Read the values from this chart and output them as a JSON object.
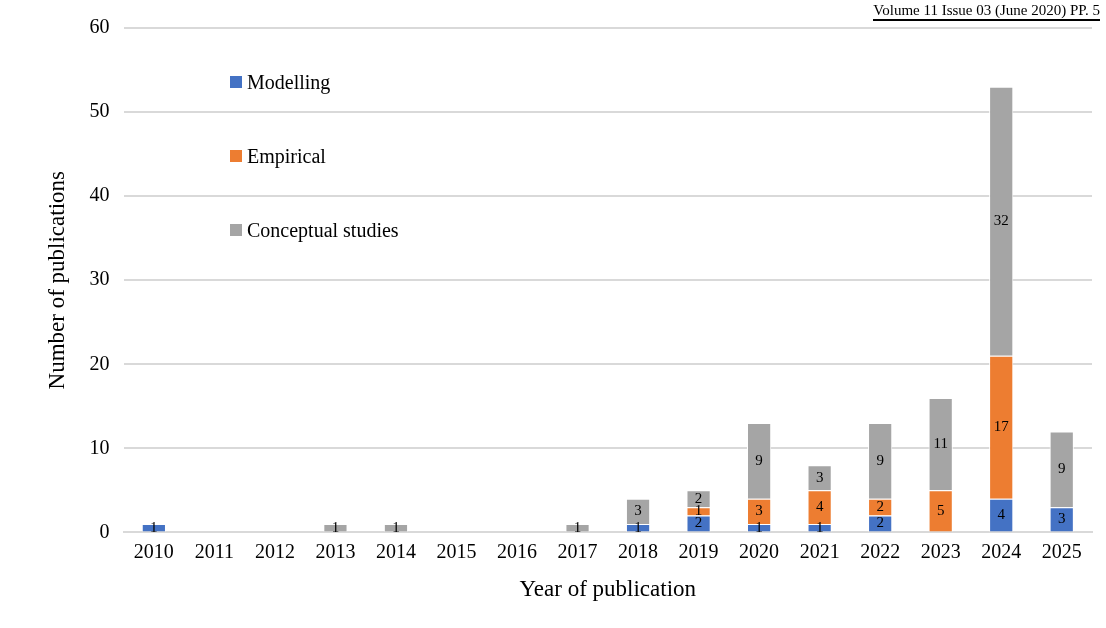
{
  "chart_data": {
    "type": "bar",
    "stacked": true,
    "xlabel": "Year of publication",
    "ylabel": "Number of publications",
    "categories": [
      "2010",
      "2011",
      "2012",
      "2013",
      "2014",
      "2015",
      "2016",
      "2017",
      "2018",
      "2019",
      "2020",
      "2021",
      "2022",
      "2023",
      "2024",
      "2025"
    ],
    "series": [
      {
        "name": "Modelling",
        "color": "#4472c4",
        "values": [
          1,
          null,
          null,
          null,
          null,
          null,
          null,
          null,
          1,
          2,
          1,
          1,
          2,
          null,
          4,
          3
        ]
      },
      {
        "name": "Empirical",
        "color": "#ed7d31",
        "values": [
          null,
          null,
          null,
          null,
          null,
          null,
          null,
          null,
          null,
          1,
          3,
          4,
          2,
          5,
          17,
          null
        ]
      },
      {
        "name": "Conceptual studies",
        "color": "#a5a5a5",
        "values": [
          null,
          null,
          null,
          1,
          1,
          null,
          null,
          1,
          3,
          2,
          9,
          3,
          9,
          11,
          32,
          9
        ]
      }
    ],
    "ylim": [
      0,
      60
    ],
    "yticks": [
      0,
      10,
      20,
      30,
      40,
      50,
      60
    ],
    "grid": "y",
    "legend": "top left",
    "data_labels": true,
    "annotations": [
      "Volume 11 Issue 03 (June 2020) PP. 5"
    ]
  }
}
